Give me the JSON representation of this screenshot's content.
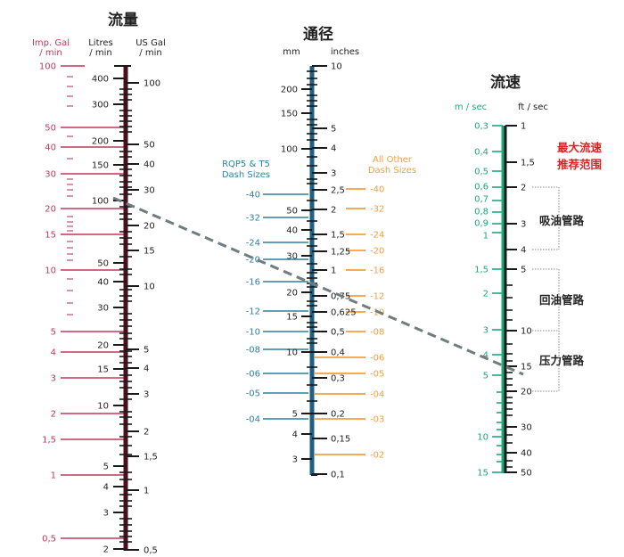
{
  "colors": {
    "imp": "#c0395a",
    "scale_dark": "#1a1a1a",
    "flow_bar": "#4a1020",
    "dia_bar": "#1f5f85",
    "rqp": "#2f7fa0",
    "dash": "#f0a040",
    "vel": "#1ea878",
    "red_note": "#e02020",
    "guide": "#6f7c80"
  },
  "flow": {
    "title": "流量",
    "imp_header": [
      "Imp. Gal",
      "/ min"
    ],
    "litres_header": [
      "Litres",
      "/ min"
    ],
    "usgal_header": [
      "US Gal",
      "/ min"
    ],
    "imp_ticks": [
      "100",
      "50",
      "40",
      "30",
      "20",
      "15",
      "10",
      "5",
      "4",
      "3",
      "2",
      "1,5",
      "1",
      "0,5"
    ],
    "litres_ticks": [
      "400",
      "300",
      "200",
      "150",
      "100",
      "50",
      "40",
      "30",
      "20",
      "15",
      "10",
      "5",
      "4",
      "3",
      "2"
    ],
    "usgal_ticks": [
      "100",
      "50",
      "40",
      "30",
      "20",
      "15",
      "10",
      "5",
      "4",
      "3",
      "2",
      "1,5",
      "1",
      "0,5"
    ]
  },
  "diameter": {
    "title": "通径",
    "mm_header": "mm",
    "inches_header": "inches",
    "mm_ticks": [
      "200",
      "150",
      "100",
      "50",
      "40",
      "30",
      "20",
      "15",
      "10",
      "5",
      "4",
      "3"
    ],
    "inch_ticks": [
      "10",
      "5",
      "4",
      "3",
      "2,5",
      "2",
      "1,5",
      "1,25",
      "1",
      "0,75",
      "0,625",
      "0,5",
      "0,4",
      "0,3",
      "0,2",
      "0,15",
      "0,1"
    ],
    "rqp_header": [
      "RQP5 & T5",
      "Dash Sizes"
    ],
    "rqp_ticks": [
      "-40",
      "-32",
      "-24",
      "-20",
      "-16",
      "-12",
      "-10",
      "-08",
      "-06",
      "-05",
      "-04"
    ],
    "other_header": [
      "All Other",
      "Dash Sizes"
    ],
    "other_ticks": [
      "-40",
      "-32",
      "-24",
      "-20",
      "-16",
      "-12",
      "-10",
      "-08",
      "-06",
      "-05",
      "-04",
      "-03",
      "-02"
    ]
  },
  "velocity": {
    "title": "流速",
    "ms_header": "m / sec",
    "fts_header": "ft / sec",
    "ms_ticks": [
      "0,3",
      "0,4",
      "0,5",
      "0,6",
      "0,7",
      "0,8",
      "0,9",
      "1",
      "1,5",
      "2",
      "3",
      "4",
      "5",
      "10",
      "15"
    ],
    "fts_ticks": [
      "1",
      "1,5",
      "2",
      "3",
      "4",
      "5",
      "10",
      "15",
      "20",
      "30",
      "40",
      "50"
    ],
    "max_note": [
      "最大流速",
      "推荐范围"
    ],
    "ranges": [
      "吸油管路",
      "回油管路",
      "压力管路"
    ]
  }
}
